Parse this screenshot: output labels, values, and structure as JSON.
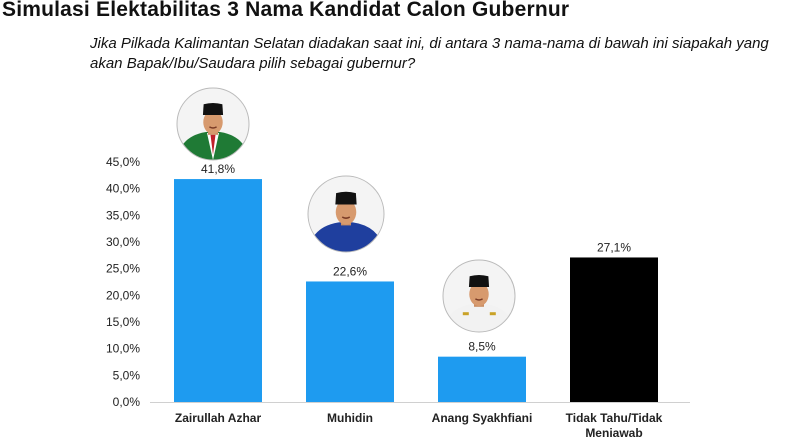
{
  "title": "Simulasi Elektabilitas 3 Nama Kandidat Calon Gubernur",
  "question_line1": "Jika Pilkada Kalimantan Selatan diadakan saat ini, di antara 3 nama-nama di bawah ini siapakah yang",
  "question_line2": "akan Bapak/Ibu/Saudara  pilih sebagai gubernur?",
  "chart_data": {
    "type": "bar",
    "categories": [
      "Zairullah Azhar",
      "Muhidin",
      "Anang Syakhfiani",
      "Tidak Tahu/Tidak Meniawab"
    ],
    "values": [
      41.8,
      22.6,
      8.5,
      27.1
    ],
    "data_labels": [
      "41,8%",
      "22,6%",
      "8,5%",
      "27,1%"
    ],
    "ylim": [
      0,
      45
    ],
    "yticks": [
      "0,0%",
      "5,0%",
      "10,0%",
      "15,0%",
      "20,0%",
      "25,0%",
      "30,0%",
      "35,0%",
      "40,0%",
      "45,0%"
    ],
    "grid": false,
    "bar_colors": [
      "#1e9bf0",
      "#1e9bf0",
      "#1e9bf0",
      "#000000"
    ],
    "candidate_photos": [
      "candidate-photo-zairullah",
      "candidate-photo-muhidin",
      "candidate-photo-anang"
    ]
  }
}
